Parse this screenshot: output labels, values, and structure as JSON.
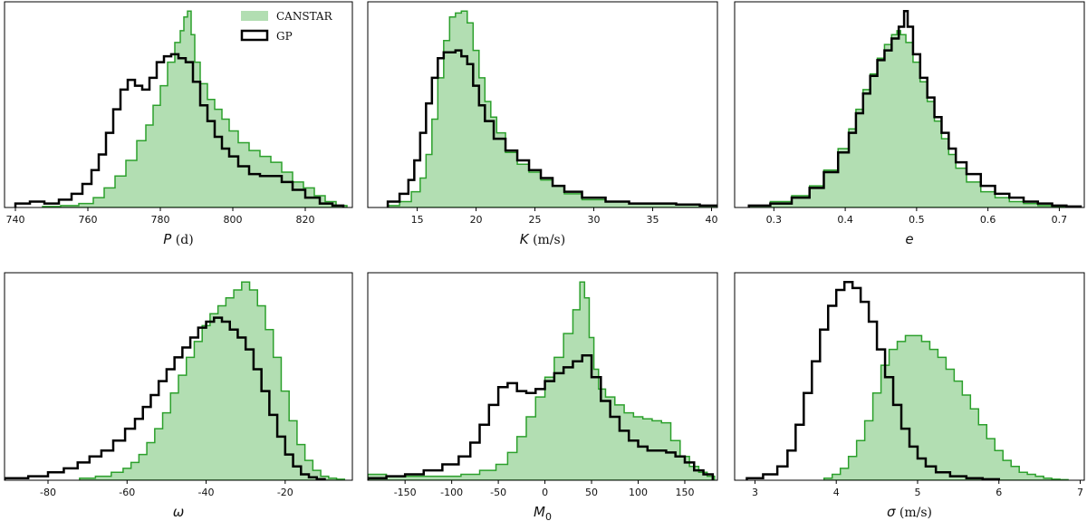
{
  "colors": {
    "canstar_fill": "#b2deb2",
    "canstar_edge": "#2ca02c",
    "gp_edge": "#000000"
  },
  "legend": {
    "placement": "top-right of first panel",
    "entries": [
      {
        "label": "CANSTAR"
      },
      {
        "label": "GP"
      }
    ]
  },
  "chart_data": [
    {
      "type": "histogram",
      "xlabel": {
        "symbol": "P",
        "unit": " (d)"
      },
      "xlim": [
        737,
        833
      ],
      "xticks": [
        740,
        760,
        780,
        800,
        820
      ],
      "series": [
        {
          "name": "CANSTAR",
          "style": "filled",
          "x": [
            750,
            755,
            760,
            763,
            766,
            769,
            772,
            775,
            777,
            779,
            781,
            783,
            785,
            786,
            787,
            788,
            789,
            790,
            792,
            794,
            796,
            798,
            800,
            803,
            806,
            809,
            812,
            815,
            818,
            821,
            824,
            827,
            830
          ],
          "y": [
            0.005,
            0.01,
            0.02,
            0.05,
            0.1,
            0.16,
            0.24,
            0.34,
            0.42,
            0.52,
            0.62,
            0.74,
            0.84,
            0.9,
            0.97,
            1.0,
            0.88,
            0.74,
            0.63,
            0.55,
            0.5,
            0.45,
            0.39,
            0.33,
            0.29,
            0.26,
            0.23,
            0.18,
            0.13,
            0.1,
            0.06,
            0.03,
            0.01
          ]
        },
        {
          "name": "GP",
          "style": "step",
          "x": [
            742,
            746,
            750,
            754,
            757,
            760,
            762,
            764,
            766,
            768,
            770,
            772,
            774,
            776,
            778,
            780,
            782,
            784,
            786,
            788,
            790,
            792,
            794,
            796,
            798,
            800,
            803,
            806,
            809,
            812,
            815,
            818,
            822,
            826,
            829
          ],
          "y": [
            0.02,
            0.03,
            0.02,
            0.04,
            0.07,
            0.12,
            0.19,
            0.27,
            0.38,
            0.5,
            0.6,
            0.65,
            0.62,
            0.6,
            0.66,
            0.74,
            0.77,
            0.78,
            0.76,
            0.74,
            0.64,
            0.52,
            0.44,
            0.36,
            0.3,
            0.26,
            0.21,
            0.17,
            0.16,
            0.16,
            0.13,
            0.09,
            0.05,
            0.02,
            0.01
          ]
        }
      ]
    },
    {
      "type": "histogram",
      "xlabel": {
        "symbol": "K",
        "unit": " (m/s)"
      },
      "xlim": [
        10.8,
        40.5
      ],
      "xticks": [
        15,
        20,
        25,
        30,
        35,
        40
      ],
      "series": [
        {
          "name": "CANSTAR",
          "style": "filled",
          "x": [
            13,
            14,
            15,
            15.5,
            16,
            16.5,
            17,
            17.5,
            18,
            18.5,
            19,
            19.5,
            20,
            20.5,
            21,
            21.5,
            22,
            23,
            24,
            25,
            26,
            27,
            28,
            30,
            32,
            34,
            36,
            38,
            40
          ],
          "y": [
            0.01,
            0.03,
            0.08,
            0.15,
            0.27,
            0.45,
            0.66,
            0.85,
            0.97,
            0.99,
            1.0,
            0.94,
            0.8,
            0.66,
            0.54,
            0.46,
            0.38,
            0.28,
            0.22,
            0.18,
            0.14,
            0.11,
            0.07,
            0.04,
            0.03,
            0.02,
            0.02,
            0.015,
            0.01
          ]
        },
        {
          "name": "GP",
          "style": "step",
          "x": [
            13,
            14,
            14.5,
            15,
            15.5,
            16,
            16.5,
            17,
            17.5,
            18,
            18.5,
            19,
            19.5,
            20,
            20.5,
            21,
            22,
            23,
            24,
            25,
            26,
            27,
            28,
            30,
            32,
            34,
            36,
            38,
            40
          ],
          "y": [
            0.03,
            0.07,
            0.14,
            0.24,
            0.38,
            0.53,
            0.66,
            0.76,
            0.79,
            0.79,
            0.8,
            0.77,
            0.73,
            0.62,
            0.52,
            0.44,
            0.35,
            0.29,
            0.24,
            0.19,
            0.15,
            0.11,
            0.08,
            0.05,
            0.03,
            0.02,
            0.02,
            0.015,
            0.01
          ]
        }
      ]
    },
    {
      "type": "histogram",
      "xlabel": {
        "symbol": "e",
        "unit": ""
      },
      "xlim": [
        0.245,
        0.735
      ],
      "xticks": [
        0.3,
        0.4,
        0.5,
        0.6,
        0.7
      ],
      "series": [
        {
          "name": "CANSTAR",
          "style": "filled",
          "x": [
            0.28,
            0.31,
            0.34,
            0.36,
            0.38,
            0.4,
            0.41,
            0.42,
            0.43,
            0.44,
            0.45,
            0.46,
            0.47,
            0.475,
            0.48,
            0.49,
            0.5,
            0.51,
            0.52,
            0.53,
            0.54,
            0.55,
            0.56,
            0.58,
            0.6,
            0.62,
            0.64,
            0.66,
            0.68,
            0.7
          ],
          "y": [
            0.01,
            0.03,
            0.06,
            0.11,
            0.19,
            0.3,
            0.4,
            0.5,
            0.6,
            0.68,
            0.76,
            0.83,
            0.88,
            0.9,
            0.88,
            0.84,
            0.74,
            0.64,
            0.54,
            0.44,
            0.35,
            0.27,
            0.2,
            0.13,
            0.08,
            0.05,
            0.03,
            0.02,
            0.01,
            0.005
          ]
        },
        {
          "name": "GP",
          "style": "step",
          "x": [
            0.28,
            0.31,
            0.34,
            0.36,
            0.38,
            0.4,
            0.41,
            0.42,
            0.43,
            0.44,
            0.45,
            0.46,
            0.47,
            0.48,
            0.485,
            0.49,
            0.5,
            0.51,
            0.52,
            0.53,
            0.54,
            0.55,
            0.56,
            0.58,
            0.6,
            0.62,
            0.64,
            0.66,
            0.68,
            0.7,
            0.72
          ],
          "y": [
            0.01,
            0.02,
            0.05,
            0.1,
            0.18,
            0.28,
            0.38,
            0.48,
            0.58,
            0.67,
            0.75,
            0.8,
            0.86,
            0.92,
            1.0,
            0.92,
            0.78,
            0.66,
            0.56,
            0.46,
            0.38,
            0.3,
            0.23,
            0.17,
            0.11,
            0.07,
            0.05,
            0.03,
            0.02,
            0.01,
            0.005
          ]
        }
      ]
    },
    {
      "type": "histogram",
      "xlabel": {
        "symbol": "ω",
        "unit": ""
      },
      "xlim": [
        -91,
        -3
      ],
      "xticks": [
        -80,
        -60,
        -40,
        -20
      ],
      "series": [
        {
          "name": "CANSTAR",
          "style": "filled",
          "x": [
            -70,
            -66,
            -62,
            -60,
            -58,
            -56,
            -54,
            -52,
            -50,
            -48,
            -46,
            -44,
            -42,
            -40,
            -38,
            -36,
            -34,
            -32,
            -30,
            -28,
            -26,
            -24,
            -22,
            -20,
            -18,
            -16,
            -14,
            -12,
            -10,
            -8,
            -6
          ],
          "y": [
            0.01,
            0.02,
            0.04,
            0.06,
            0.09,
            0.13,
            0.19,
            0.26,
            0.34,
            0.44,
            0.53,
            0.62,
            0.7,
            0.78,
            0.84,
            0.88,
            0.92,
            0.96,
            1.0,
            0.96,
            0.88,
            0.76,
            0.62,
            0.45,
            0.3,
            0.18,
            0.1,
            0.05,
            0.02,
            0.01,
            0.005
          ]
        },
        {
          "name": "GP",
          "style": "step",
          "x": [
            -88,
            -82,
            -78,
            -74,
            -71,
            -68,
            -65,
            -62,
            -59,
            -57,
            -55,
            -53,
            -51,
            -49,
            -47,
            -45,
            -43,
            -41,
            -39,
            -37,
            -35,
            -33,
            -31,
            -29,
            -27,
            -25,
            -23,
            -21,
            -19,
            -17,
            -15,
            -13,
            -11
          ],
          "y": [
            0.01,
            0.02,
            0.04,
            0.06,
            0.09,
            0.12,
            0.15,
            0.2,
            0.26,
            0.31,
            0.37,
            0.43,
            0.5,
            0.56,
            0.62,
            0.67,
            0.72,
            0.77,
            0.8,
            0.82,
            0.8,
            0.76,
            0.72,
            0.66,
            0.56,
            0.45,
            0.33,
            0.22,
            0.13,
            0.07,
            0.03,
            0.015,
            0.005
          ]
        }
      ]
    },
    {
      "type": "histogram",
      "xlabel": {
        "symbol": "M",
        "sub": "0",
        "unit": ""
      },
      "xlim": [
        -190,
        185
      ],
      "xticks": [
        -150,
        -100,
        -50,
        0,
        50,
        100,
        150
      ],
      "series": [
        {
          "name": "CANSTAR",
          "style": "filled",
          "x": [
            -180,
            -160,
            -140,
            -120,
            -100,
            -80,
            -60,
            -45,
            -35,
            -25,
            -15,
            -5,
            5,
            15,
            25,
            35,
            40,
            45,
            50,
            55,
            60,
            70,
            80,
            90,
            100,
            110,
            120,
            130,
            140,
            150,
            160,
            170,
            178
          ],
          "y": [
            0.03,
            0.02,
            0.02,
            0.02,
            0.02,
            0.03,
            0.05,
            0.08,
            0.14,
            0.22,
            0.32,
            0.42,
            0.52,
            0.62,
            0.74,
            0.86,
            1.0,
            0.92,
            0.72,
            0.56,
            0.46,
            0.42,
            0.38,
            0.34,
            0.32,
            0.31,
            0.3,
            0.29,
            0.2,
            0.12,
            0.07,
            0.04,
            0.02
          ]
        },
        {
          "name": "GP",
          "style": "step",
          "x": [
            -180,
            -160,
            -140,
            -120,
            -100,
            -85,
            -75,
            -65,
            -55,
            -45,
            -35,
            -25,
            -15,
            -5,
            5,
            15,
            25,
            35,
            45,
            55,
            65,
            75,
            85,
            95,
            105,
            115,
            125,
            135,
            145,
            155,
            165,
            175
          ],
          "y": [
            0.01,
            0.02,
            0.03,
            0.05,
            0.08,
            0.12,
            0.19,
            0.28,
            0.38,
            0.47,
            0.49,
            0.45,
            0.44,
            0.46,
            0.5,
            0.54,
            0.57,
            0.6,
            0.63,
            0.52,
            0.4,
            0.32,
            0.25,
            0.2,
            0.17,
            0.15,
            0.15,
            0.14,
            0.12,
            0.09,
            0.05,
            0.03
          ]
        }
      ]
    },
    {
      "type": "histogram",
      "xlabel": {
        "symbol": "σ",
        "unit": " (m/s)"
      },
      "xlim": [
        2.75,
        7.05
      ],
      "xticks": [
        3,
        4,
        5,
        6,
        7
      ],
      "series": [
        {
          "name": "CANSTAR",
          "style": "filled",
          "x": [
            3.9,
            4.0,
            4.1,
            4.2,
            4.3,
            4.4,
            4.5,
            4.6,
            4.7,
            4.8,
            4.9,
            5.0,
            5.1,
            5.2,
            5.3,
            5.4,
            5.5,
            5.6,
            5.7,
            5.8,
            5.9,
            6.0,
            6.1,
            6.2,
            6.3,
            6.4,
            6.5,
            6.6,
            6.7,
            6.8
          ],
          "y": [
            0.01,
            0.03,
            0.06,
            0.12,
            0.2,
            0.3,
            0.44,
            0.58,
            0.66,
            0.7,
            0.73,
            0.73,
            0.7,
            0.66,
            0.62,
            0.56,
            0.5,
            0.43,
            0.36,
            0.28,
            0.21,
            0.15,
            0.1,
            0.07,
            0.04,
            0.03,
            0.02,
            0.01,
            0.005,
            0.003
          ]
        },
        {
          "name": "GP",
          "style": "step",
          "x": [
            3.0,
            3.2,
            3.35,
            3.45,
            3.55,
            3.65,
            3.75,
            3.85,
            3.95,
            4.05,
            4.15,
            4.25,
            4.35,
            4.45,
            4.55,
            4.65,
            4.75,
            4.85,
            4.95,
            5.05,
            5.15,
            5.3,
            5.5,
            5.7,
            5.9
          ],
          "y": [
            0.01,
            0.03,
            0.07,
            0.15,
            0.28,
            0.44,
            0.6,
            0.76,
            0.88,
            0.96,
            1.0,
            0.97,
            0.9,
            0.8,
            0.66,
            0.52,
            0.38,
            0.26,
            0.17,
            0.11,
            0.07,
            0.04,
            0.02,
            0.01,
            0.005
          ]
        }
      ]
    }
  ]
}
